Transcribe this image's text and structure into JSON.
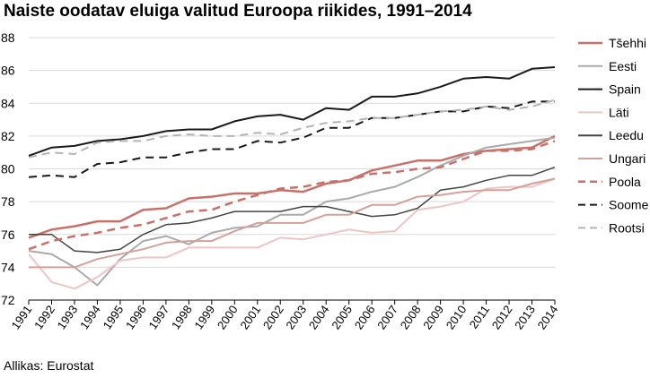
{
  "chart_data": {
    "type": "line",
    "title": "Naiste oodatav eluiga valitud Euroopa riikides, 1991–2014",
    "source": "Allikas: Eurostat",
    "xlabel": "",
    "ylabel": "",
    "x": [
      "1991",
      "1992",
      "1993",
      "1994",
      "1995",
      "1996",
      "1997",
      "1998",
      "1999",
      "2000",
      "2001",
      "2002",
      "2003",
      "2004",
      "2005",
      "2006",
      "2007",
      "2008",
      "2009",
      "2010",
      "2011",
      "2012",
      "2013",
      "2014"
    ],
    "ylim": [
      72,
      88
    ],
    "yticks": [
      72,
      74,
      76,
      78,
      80,
      82,
      84,
      86,
      88
    ],
    "grid": true,
    "legend_position": "right",
    "series": [
      {
        "name": "Tšehhi",
        "color": "#c8706a",
        "dash": "solid",
        "width": 2.5,
        "values": [
          75.8,
          76.3,
          76.5,
          76.8,
          76.8,
          77.5,
          77.6,
          78.2,
          78.3,
          78.5,
          78.5,
          78.7,
          78.6,
          79.1,
          79.3,
          79.9,
          80.2,
          80.5,
          80.5,
          80.9,
          81.1,
          81.2,
          81.3,
          82.0
        ]
      },
      {
        "name": "Eesti",
        "color": "#aaaaaa",
        "dash": "solid",
        "width": 2,
        "values": [
          75.0,
          74.8,
          74.0,
          72.9,
          74.5,
          75.6,
          75.9,
          75.4,
          76.1,
          76.4,
          76.5,
          77.2,
          77.2,
          78.0,
          78.2,
          78.6,
          78.9,
          79.5,
          80.2,
          80.8,
          81.3,
          81.5,
          81.7,
          81.9
        ]
      },
      {
        "name": "Spain",
        "color": "#1a1a1a",
        "dash": "solid",
        "width": 2,
        "values": [
          80.8,
          81.3,
          81.4,
          81.7,
          81.8,
          82.0,
          82.3,
          82.4,
          82.4,
          82.9,
          83.2,
          83.3,
          83.0,
          83.7,
          83.6,
          84.4,
          84.4,
          84.6,
          85.0,
          85.5,
          85.6,
          85.5,
          86.1,
          86.2
        ]
      },
      {
        "name": "Läti",
        "color": "#eec4c4",
        "dash": "solid",
        "width": 2,
        "values": [
          74.8,
          73.1,
          72.7,
          73.4,
          74.4,
          74.6,
          74.6,
          75.2,
          75.2,
          75.2,
          75.2,
          75.8,
          75.7,
          76.0,
          76.3,
          76.1,
          76.2,
          77.5,
          77.7,
          78.0,
          78.8,
          78.9,
          78.9,
          79.4
        ]
      },
      {
        "name": "Leedu",
        "color": "#444444",
        "dash": "solid",
        "width": 1.5,
        "values": [
          76.0,
          76.0,
          75.0,
          74.9,
          75.1,
          76.0,
          76.6,
          76.7,
          77.0,
          77.4,
          77.4,
          77.4,
          77.7,
          77.7,
          77.4,
          77.1,
          77.2,
          77.6,
          78.7,
          78.9,
          79.3,
          79.6,
          79.6,
          80.1
        ]
      },
      {
        "name": "Ungari",
        "color": "#d4a09a",
        "dash": "solid",
        "width": 2,
        "values": [
          74.0,
          74.0,
          74.0,
          74.5,
          74.8,
          75.1,
          75.5,
          75.6,
          75.6,
          76.2,
          76.7,
          76.7,
          76.7,
          77.2,
          77.2,
          77.8,
          77.8,
          78.3,
          78.4,
          78.6,
          78.7,
          78.7,
          79.1,
          79.4
        ]
      },
      {
        "name": "Poola",
        "color": "#c8706a",
        "dash": "dashed",
        "width": 2.5,
        "values": [
          75.1,
          75.6,
          75.9,
          76.1,
          76.4,
          76.6,
          77.0,
          77.4,
          77.5,
          78.0,
          78.4,
          78.8,
          78.9,
          79.2,
          79.3,
          79.7,
          79.8,
          80.0,
          80.1,
          80.6,
          81.1,
          81.1,
          81.2,
          81.7
        ]
      },
      {
        "name": "Soome",
        "color": "#1a1a1a",
        "dash": "dashed",
        "width": 2,
        "values": [
          79.5,
          79.6,
          79.5,
          80.3,
          80.4,
          80.7,
          80.7,
          81.0,
          81.2,
          81.2,
          81.7,
          81.6,
          81.9,
          82.5,
          82.5,
          83.1,
          83.1,
          83.3,
          83.5,
          83.5,
          83.8,
          83.7,
          84.1,
          84.1
        ]
      },
      {
        "name": "Rootsi",
        "color": "#b4b4b4",
        "dash": "dashed",
        "width": 2,
        "values": [
          80.7,
          81.0,
          80.9,
          81.6,
          81.7,
          81.7,
          82.0,
          82.1,
          82.0,
          82.0,
          82.2,
          82.1,
          82.5,
          82.8,
          82.9,
          83.1,
          83.1,
          83.3,
          83.5,
          83.6,
          83.8,
          83.6,
          83.8,
          84.2
        ]
      }
    ]
  }
}
